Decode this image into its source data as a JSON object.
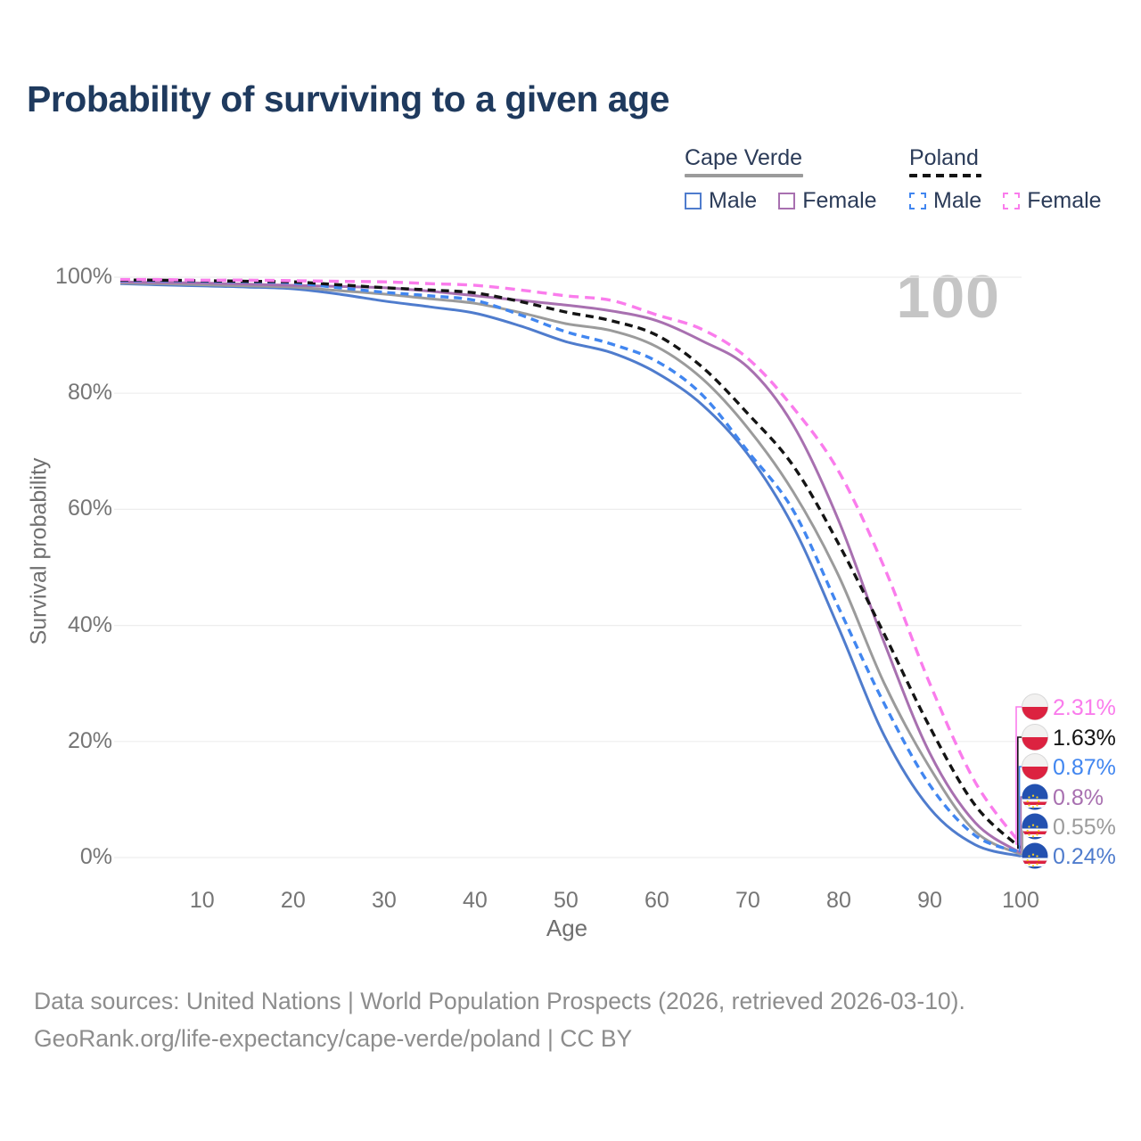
{
  "header": {
    "title": "Probability of surviving to a given age"
  },
  "legend": {
    "groups": [
      {
        "label": "Cape Verde",
        "line_style": "solid",
        "line_color": "#9b9b9b",
        "items": [
          {
            "label": "Male",
            "color": "#4f7ccd",
            "style": "solid"
          },
          {
            "label": "Female",
            "color": "#a870b0",
            "style": "solid"
          }
        ]
      },
      {
        "label": "Poland",
        "line_style": "dashed",
        "line_color": "#141414",
        "items": [
          {
            "label": "Male",
            "color": "#4186f0",
            "style": "dashed"
          },
          {
            "label": "Female",
            "color": "#fa7cec",
            "style": "dashed"
          }
        ]
      }
    ]
  },
  "chart_data": {
    "type": "line",
    "title": "Probability of surviving to a given age",
    "xlabel": "Age",
    "ylabel": "Survival probability",
    "xlim": [
      1,
      100
    ],
    "ylim": [
      0,
      100
    ],
    "grid": "horizontal",
    "legend_position": "top-right",
    "watermark": "100",
    "x_ticks": [
      {
        "value": 10,
        "label": "10"
      },
      {
        "value": 20,
        "label": "20"
      },
      {
        "value": 30,
        "label": "30"
      },
      {
        "value": 40,
        "label": "40"
      },
      {
        "value": 50,
        "label": "50"
      },
      {
        "value": 60,
        "label": "60"
      },
      {
        "value": 70,
        "label": "70"
      },
      {
        "value": 80,
        "label": "80"
      },
      {
        "value": 90,
        "label": "90"
      },
      {
        "value": 100,
        "label": "100"
      }
    ],
    "y_ticks": [
      {
        "value": 0,
        "label": "0%"
      },
      {
        "value": 20,
        "label": "20%"
      },
      {
        "value": 40,
        "label": "40%"
      },
      {
        "value": 60,
        "label": "60%"
      },
      {
        "value": 80,
        "label": "80%"
      },
      {
        "value": 100,
        "label": "100%"
      }
    ],
    "ages": [
      1,
      5,
      10,
      15,
      20,
      25,
      30,
      35,
      40,
      45,
      50,
      55,
      60,
      65,
      70,
      75,
      80,
      85,
      90,
      95,
      100
    ],
    "series": [
      {
        "name": "Cape Verde Male",
        "country": "Cape Verde",
        "sex": "Male",
        "color": "#4f7ccd",
        "dash": "solid",
        "flag": "cape-verde",
        "end_label": "0.24%",
        "end_value": 0.24,
        "values": [
          98.9,
          98.7,
          98.5,
          98.3,
          98.0,
          97.1,
          95.9,
          94.9,
          93.8,
          91.6,
          88.9,
          87.0,
          83.5,
          78.0,
          69.5,
          57.0,
          39.5,
          21.0,
          8.5,
          2.2,
          0.24
        ]
      },
      {
        "name": "Cape Verde Total",
        "country": "Cape Verde",
        "sex": "Both",
        "color": "#9b9b9b",
        "dash": "solid",
        "flag": "cape-verde",
        "end_label": "0.55%",
        "end_value": 0.55,
        "values": [
          99.0,
          98.9,
          98.7,
          98.5,
          98.3,
          97.7,
          97.1,
          96.3,
          95.5,
          93.9,
          92.0,
          90.8,
          88.0,
          82.5,
          74.0,
          63.0,
          48.5,
          30.0,
          15.5,
          4.5,
          0.55
        ]
      },
      {
        "name": "Cape Verde Female",
        "country": "Cape Verde",
        "sex": "Female",
        "color": "#a870b0",
        "dash": "solid",
        "flag": "cape-verde",
        "end_label": "0.8%",
        "end_value": 0.8,
        "values": [
          99.2,
          99.1,
          99.0,
          98.8,
          98.6,
          98.4,
          98.2,
          97.6,
          96.8,
          96.0,
          95.2,
          94.2,
          92.5,
          89.0,
          84.5,
          74.5,
          58.0,
          37.0,
          18.0,
          6.0,
          0.8
        ]
      },
      {
        "name": "Poland Male",
        "country": "Poland",
        "sex": "Male",
        "color": "#4186f0",
        "dash": "dashed",
        "flag": "poland",
        "end_label": "0.87%",
        "end_value": 0.87,
        "values": [
          99.4,
          99.4,
          99.3,
          99.2,
          99.0,
          98.2,
          97.4,
          96.8,
          96.0,
          93.5,
          90.6,
          88.5,
          85.5,
          79.7,
          70.0,
          59.8,
          43.0,
          26.5,
          12.5,
          3.8,
          0.87
        ]
      },
      {
        "name": "Poland Total",
        "country": "Poland",
        "sex": "Both",
        "color": "#141414",
        "dash": "dashed",
        "flag": "poland",
        "end_label": "1.63%",
        "end_value": 1.63,
        "values": [
          99.5,
          99.5,
          99.4,
          99.3,
          99.2,
          98.7,
          98.2,
          97.8,
          97.3,
          95.8,
          94.0,
          92.5,
          90.0,
          84.5,
          76.5,
          67.5,
          54.0,
          38.5,
          22.5,
          9.0,
          1.63
        ]
      },
      {
        "name": "Poland Female",
        "country": "Poland",
        "sex": "Female",
        "color": "#fa7cec",
        "dash": "dashed",
        "flag": "poland",
        "end_label": "2.31%",
        "end_value": 2.31,
        "values": [
          99.6,
          99.6,
          99.5,
          99.5,
          99.4,
          99.3,
          99.2,
          98.9,
          98.6,
          97.8,
          96.8,
          96.0,
          93.5,
          91.0,
          86.0,
          77.5,
          66.5,
          50.0,
          30.0,
          13.0,
          2.31
        ]
      }
    ]
  },
  "footer": {
    "line1": "Data sources: United Nations | World Population Prospects (2026, retrieved 2026-03-10).",
    "line2": "GeoRank.org/life-expectancy/cape-verde/poland | CC BY"
  }
}
